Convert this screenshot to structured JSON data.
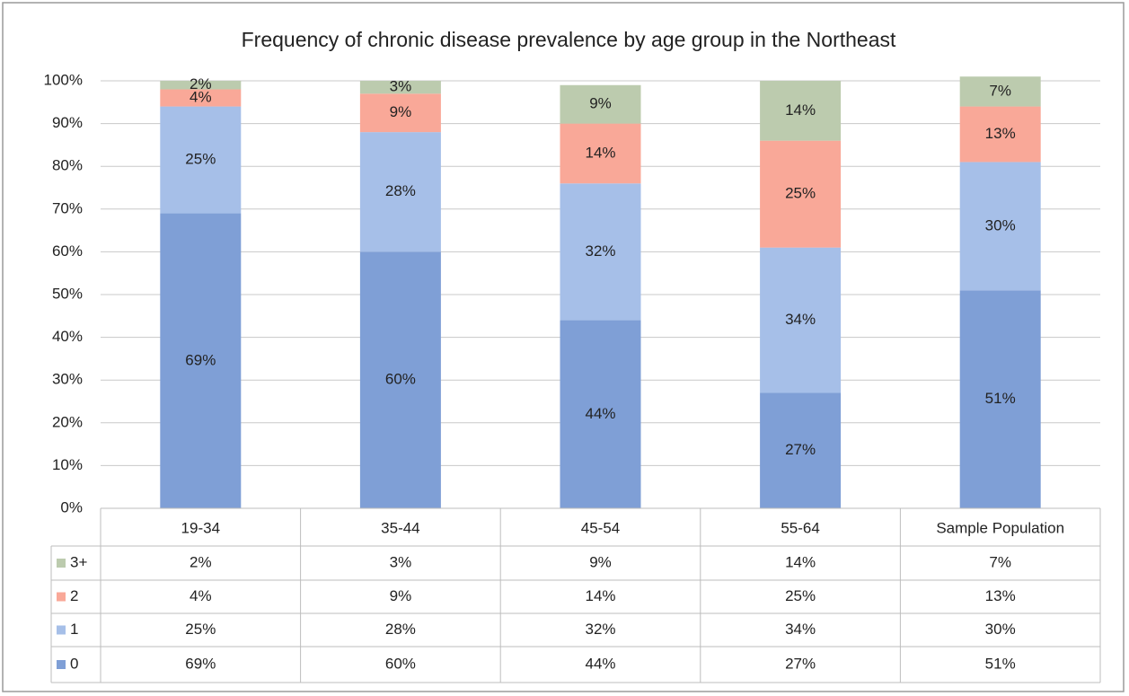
{
  "chart_data": {
    "type": "stacked_bar",
    "title": "Frequency of chronic disease prevalence by age group in the Northeast",
    "categories": [
      "19-34",
      "35-44",
      "45-54",
      "55-64",
      "Sample Population"
    ],
    "series": [
      {
        "name": "0",
        "color": "#7f9fd6",
        "values": [
          69,
          60,
          44,
          27,
          51
        ],
        "value_labels": [
          "69%",
          "60%",
          "44%",
          "27%",
          "51%"
        ]
      },
      {
        "name": "1",
        "color": "#a6bfe8",
        "values": [
          25,
          28,
          32,
          34,
          30
        ],
        "value_labels": [
          "25%",
          "28%",
          "32%",
          "34%",
          "30%"
        ]
      },
      {
        "name": "2",
        "color": "#f9a898",
        "values": [
          4,
          9,
          14,
          25,
          13
        ],
        "value_labels": [
          "4%",
          "9%",
          "14%",
          "25%",
          "13%"
        ]
      },
      {
        "name": "3+",
        "color": "#bccbae",
        "values": [
          2,
          3,
          9,
          14,
          7
        ],
        "value_labels": [
          "2%",
          "3%",
          "9%",
          "14%",
          "7%"
        ]
      }
    ],
    "ylim": [
      0,
      100
    ],
    "yticks": [
      {
        "value": 0,
        "label": "0%"
      },
      {
        "value": 10,
        "label": "10%"
      },
      {
        "value": 20,
        "label": "20%"
      },
      {
        "value": 30,
        "label": "30%"
      },
      {
        "value": 40,
        "label": "40%"
      },
      {
        "value": 50,
        "label": "50%"
      },
      {
        "value": 60,
        "label": "60%"
      },
      {
        "value": 70,
        "label": "70%"
      },
      {
        "value": 80,
        "label": "80%"
      },
      {
        "value": 90,
        "label": "90%"
      },
      {
        "value": 100,
        "label": "100%"
      }
    ],
    "grid": true
  }
}
